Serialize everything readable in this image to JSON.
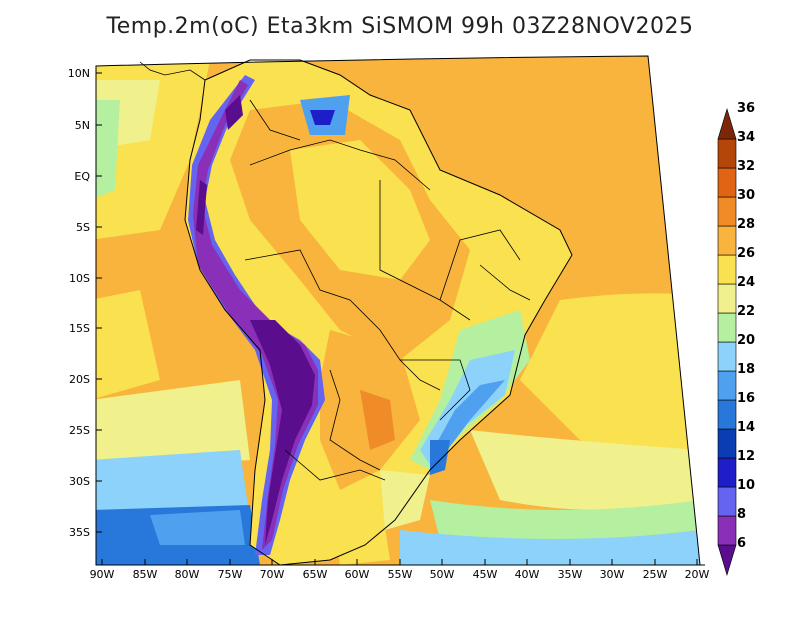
{
  "title": "Temp.2m(oC) Eta3km SiSMOM 99h 03Z28NOV2025",
  "map": {
    "lat_labels": [
      "10N",
      "5N",
      "EQ",
      "5S",
      "10S",
      "15S",
      "20S",
      "25S",
      "30S",
      "35S"
    ],
    "lon_labels": [
      "90W",
      "85W",
      "80W",
      "75W",
      "70W",
      "65W",
      "60W",
      "55W",
      "50W",
      "45W",
      "40W",
      "35W",
      "30W",
      "25W",
      "20W"
    ]
  },
  "colorbar": {
    "labels": [
      "6",
      "8",
      "10",
      "12",
      "14",
      "16",
      "18",
      "20",
      "22",
      "24",
      "26",
      "28",
      "30",
      "32",
      "34",
      "36"
    ],
    "colors": [
      "#5a0d8c",
      "#8a2fb8",
      "#6464f0",
      "#1e1ec8",
      "#0a3cb4",
      "#2878dc",
      "#50a0f0",
      "#8cd2fa",
      "#b4f0a0",
      "#f0f08c",
      "#fae150",
      "#f8b43c",
      "#f08c28",
      "#e06414",
      "#b4460a",
      "#7a2808"
    ]
  }
}
